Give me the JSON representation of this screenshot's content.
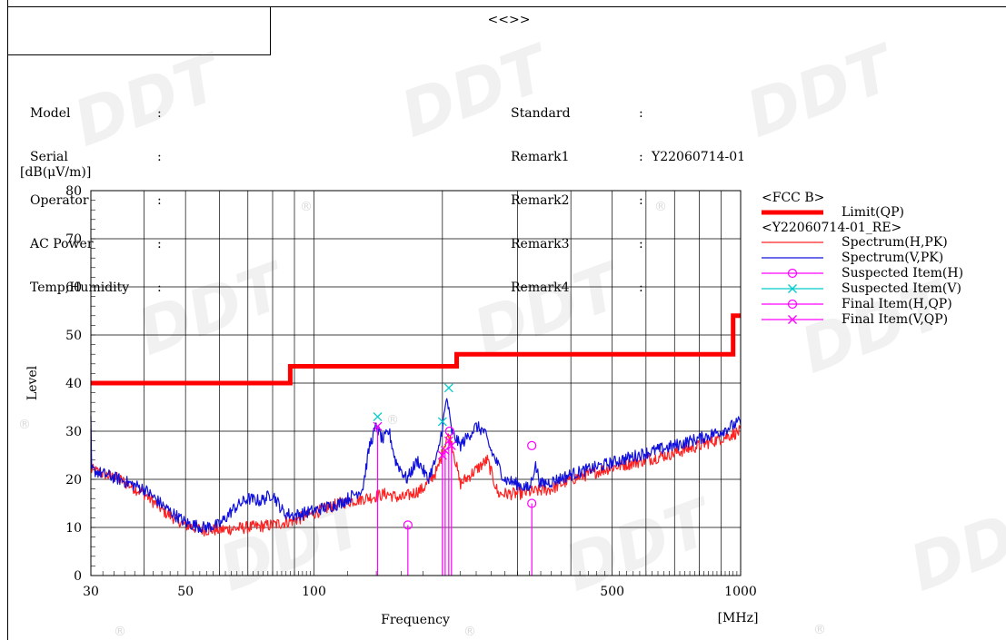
{
  "header": {
    "title": "<<>>",
    "left_fields": [
      {
        "label": "Model",
        "value": ""
      },
      {
        "label": "Serial",
        "value": ""
      },
      {
        "label": "Operator",
        "value": ""
      },
      {
        "label": "AC Power",
        "value": ""
      },
      {
        "label": "Temp,Humidity",
        "value": ""
      }
    ],
    "right_fields": [
      {
        "label": "Standard",
        "value": ""
      },
      {
        "label": "Remark1",
        "value": "Y22060714-01"
      },
      {
        "label": "Remark2",
        "value": ""
      },
      {
        "label": "Remark3",
        "value": ""
      },
      {
        "label": "Remark4",
        "value": ""
      }
    ]
  },
  "watermark": {
    "text": "DDT",
    "mark": "®"
  },
  "chart_data": {
    "type": "line",
    "ylabel": "Level",
    "yunit": "[dB(μV/m)]",
    "xlabel": "Frequency",
    "xunit": "[MHz]",
    "xscale": "log",
    "xlim": [
      30,
      1000
    ],
    "ylim": [
      0,
      80
    ],
    "xticks": [
      30,
      50,
      100,
      500,
      1000
    ],
    "yticks": [
      0,
      10,
      20,
      30,
      40,
      50,
      60,
      70,
      80
    ],
    "grid": true,
    "legend_position": "right",
    "legend_groups": [
      {
        "header": "<FCC B>",
        "items": [
          {
            "label": "Limit(QP)",
            "series": "limit"
          }
        ]
      },
      {
        "header": "<Y22060714-01_RE>",
        "items": [
          {
            "label": "Spectrum(H,PK)",
            "series": "spec_h"
          },
          {
            "label": "Spectrum(V,PK)",
            "series": "spec_v"
          },
          {
            "label": "Suspected Item(H)",
            "series": "susp_h"
          },
          {
            "label": "Suspected Item(V)",
            "series": "susp_v"
          },
          {
            "label": "Final Item(H,QP)",
            "series": "final_h"
          },
          {
            "label": "Final Item(V,QP)",
            "series": "final_v"
          }
        ]
      }
    ],
    "colors": {
      "limit": "#ff0000",
      "spec_h": "#ff2020",
      "spec_v": "#1010dd",
      "susp_h": "#ff00ff",
      "susp_v": "#00cccc",
      "final_h": "#ff00ff",
      "final_v": "#ff00ff"
    },
    "series": [
      {
        "id": "limit",
        "kind": "step",
        "points": [
          [
            30,
            40
          ],
          [
            88,
            40
          ],
          [
            88,
            43.5
          ],
          [
            216,
            43.5
          ],
          [
            216,
            46
          ],
          [
            960,
            46
          ],
          [
            960,
            54
          ],
          [
            1000,
            54
          ]
        ]
      },
      {
        "id": "spec_h",
        "kind": "noisy",
        "points": [
          [
            30,
            22
          ],
          [
            35,
            20
          ],
          [
            40,
            17
          ],
          [
            45,
            13
          ],
          [
            50,
            10.5
          ],
          [
            55,
            9.5
          ],
          [
            60,
            9.5
          ],
          [
            70,
            10
          ],
          [
            80,
            10.5
          ],
          [
            90,
            11.5
          ],
          [
            100,
            13
          ],
          [
            115,
            15
          ],
          [
            130,
            16
          ],
          [
            140,
            16.5
          ],
          [
            148,
            17
          ],
          [
            160,
            16
          ],
          [
            180,
            18
          ],
          [
            195,
            22
          ],
          [
            205,
            29
          ],
          [
            210,
            28
          ],
          [
            220,
            19
          ],
          [
            240,
            22
          ],
          [
            255,
            24
          ],
          [
            270,
            17
          ],
          [
            300,
            17
          ],
          [
            330,
            17.5
          ],
          [
            360,
            18
          ],
          [
            400,
            20
          ],
          [
            500,
            22.5
          ],
          [
            600,
            24
          ],
          [
            700,
            25.5
          ],
          [
            800,
            27
          ],
          [
            900,
            28.5
          ],
          [
            1000,
            30
          ]
        ]
      },
      {
        "id": "spec_v",
        "kind": "noisy",
        "points": [
          [
            30,
            22
          ],
          [
            35,
            20
          ],
          [
            40,
            18
          ],
          [
            45,
            14
          ],
          [
            50,
            11
          ],
          [
            55,
            10
          ],
          [
            60,
            10.5
          ],
          [
            65,
            14
          ],
          [
            70,
            16
          ],
          [
            75,
            15.5
          ],
          [
            80,
            17
          ],
          [
            85,
            13
          ],
          [
            90,
            12.5
          ],
          [
            100,
            13.5
          ],
          [
            115,
            15
          ],
          [
            125,
            17
          ],
          [
            130,
            18
          ],
          [
            135,
            27
          ],
          [
            140,
            31
          ],
          [
            145,
            28
          ],
          [
            150,
            30
          ],
          [
            155,
            24
          ],
          [
            165,
            20
          ],
          [
            175,
            24
          ],
          [
            185,
            20
          ],
          [
            195,
            25
          ],
          [
            205,
            37
          ],
          [
            210,
            30
          ],
          [
            220,
            27
          ],
          [
            240,
            31
          ],
          [
            250,
            30
          ],
          [
            260,
            26
          ],
          [
            280,
            20
          ],
          [
            300,
            19
          ],
          [
            320,
            18
          ],
          [
            330,
            23
          ],
          [
            340,
            19
          ],
          [
            360,
            19.5
          ],
          [
            400,
            21
          ],
          [
            500,
            23.5
          ],
          [
            600,
            25.5
          ],
          [
            700,
            27
          ],
          [
            800,
            28.5
          ],
          [
            900,
            30
          ],
          [
            1000,
            32
          ]
        ]
      },
      {
        "id": "susp_h",
        "kind": "marker",
        "marker": "circle",
        "points": [
          [
            208,
            30
          ],
          [
            324,
            27
          ]
        ]
      },
      {
        "id": "susp_v",
        "kind": "marker",
        "marker": "x",
        "points": [
          [
            141,
            33
          ],
          [
            200,
            32
          ],
          [
            207,
            39
          ]
        ]
      },
      {
        "id": "final_h",
        "kind": "stem",
        "marker": "circle",
        "points": [
          [
            166,
            10.5
          ],
          [
            324,
            15
          ]
        ]
      },
      {
        "id": "final_v",
        "kind": "stem",
        "marker": "x",
        "points": [
          [
            141,
            31
          ],
          [
            200,
            25
          ],
          [
            203,
            26
          ],
          [
            207,
            28
          ],
          [
            210,
            27
          ]
        ]
      }
    ]
  }
}
